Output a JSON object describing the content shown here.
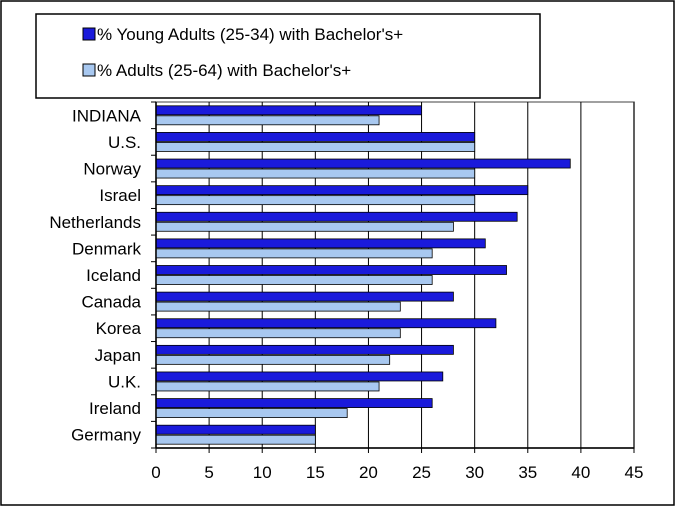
{
  "chart_data": {
    "type": "bar",
    "orientation": "horizontal",
    "categories": [
      "INDIANA",
      "U.S.",
      "Norway",
      "Israel",
      "Netherlands",
      "Denmark",
      "Iceland",
      "Canada",
      "Korea",
      "Japan",
      "U.K.",
      "Ireland",
      "Germany"
    ],
    "series": [
      {
        "name": "% Young Adults (25-34) with Bachelor's+",
        "color": "#1a1adb",
        "values": [
          25,
          30,
          39,
          35,
          34,
          31,
          33,
          28,
          32,
          28,
          27,
          26,
          15
        ]
      },
      {
        "name": "% Adults (25-64) with Bachelor's+",
        "color": "#a8c8f0",
        "values": [
          21,
          30,
          30,
          30,
          28,
          26,
          26,
          23,
          23,
          22,
          21,
          18,
          15
        ]
      }
    ],
    "xlim": [
      0,
      45
    ],
    "xticks": [
      "0",
      "5",
      "10",
      "15",
      "20",
      "25",
      "30",
      "35",
      "40",
      "45"
    ],
    "grid": "vertical",
    "legend_position": "top"
  }
}
